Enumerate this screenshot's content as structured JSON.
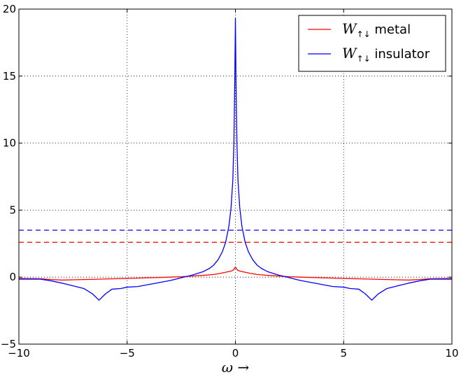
{
  "chart_data": {
    "type": "line",
    "xlabel": "ω →",
    "ylabel": "",
    "xlim": [
      -10,
      10
    ],
    "ylim": [
      -5,
      20
    ],
    "xticks": [
      "−10",
      "−5",
      "0",
      "5",
      "10"
    ],
    "yticks": [
      "−5",
      "0",
      "5",
      "10",
      "15",
      "20"
    ],
    "grid": true,
    "legend_position": "top-right",
    "series": [
      {
        "name": "W↑↓ metal",
        "name_symbol": "W",
        "name_subscript": "↑↓",
        "name_text": "metal",
        "color": "#ff0000",
        "style": "solid",
        "x": [
          -10,
          -9,
          -8.5,
          -8,
          -7.5,
          -7,
          -6,
          -5,
          -4,
          -3,
          -2.5,
          -2,
          -1.5,
          -1,
          -0.7,
          -0.4,
          -0.2,
          -0.1,
          0,
          0.1,
          0.2,
          0.4,
          0.7,
          1,
          1.5,
          2,
          2.5,
          3,
          4,
          5,
          6,
          7,
          7.5,
          8,
          8.5,
          9,
          10
        ],
        "y": [
          -0.1,
          -0.12,
          -0.18,
          -0.22,
          -0.2,
          -0.18,
          -0.14,
          -0.1,
          -0.05,
          0,
          0.03,
          0.08,
          0.13,
          0.2,
          0.28,
          0.38,
          0.45,
          0.52,
          0.75,
          0.52,
          0.45,
          0.38,
          0.28,
          0.2,
          0.13,
          0.08,
          0.03,
          0,
          -0.05,
          -0.1,
          -0.14,
          -0.18,
          -0.2,
          -0.22,
          -0.18,
          -0.12,
          -0.1
        ]
      },
      {
        "name": "W↑↓ insulator",
        "name_symbol": "W",
        "name_subscript": "↑↓",
        "name_text": "insulator",
        "color": "#0000ff",
        "style": "solid",
        "x": [
          -10,
          -9,
          -8.5,
          -8,
          -7.5,
          -7,
          -6.6,
          -6.3,
          -6.0,
          -5.7,
          -5.3,
          -5,
          -4.5,
          -4,
          -3.5,
          -3,
          -2.5,
          -2,
          -1.5,
          -1.2,
          -1,
          -0.8,
          -0.6,
          -0.45,
          -0.3,
          -0.2,
          -0.12,
          -0.07,
          -0.03,
          0,
          0.03,
          0.07,
          0.12,
          0.2,
          0.3,
          0.45,
          0.6,
          0.8,
          1,
          1.2,
          1.5,
          2,
          2.5,
          3,
          3.5,
          4,
          4.5,
          5,
          5.3,
          5.7,
          6.0,
          6.3,
          6.6,
          7,
          7.5,
          8,
          8.5,
          9,
          10
        ],
        "y": [
          -0.15,
          -0.15,
          -0.28,
          -0.45,
          -0.65,
          -0.85,
          -1.25,
          -1.72,
          -1.25,
          -0.9,
          -0.85,
          -0.75,
          -0.7,
          -0.55,
          -0.4,
          -0.25,
          -0.05,
          0.15,
          0.4,
          0.65,
          0.9,
          1.3,
          1.9,
          2.6,
          3.8,
          5.2,
          7.2,
          10,
          14.5,
          19.3,
          14.5,
          10,
          7.2,
          5.2,
          3.8,
          2.6,
          1.9,
          1.3,
          0.9,
          0.65,
          0.4,
          0.15,
          -0.05,
          -0.25,
          -0.4,
          -0.55,
          -0.7,
          -0.75,
          -0.85,
          -0.9,
          -1.25,
          -1.72,
          -1.25,
          -0.85,
          -0.65,
          -0.45,
          -0.28,
          -0.15,
          -0.15
        ]
      },
      {
        "color": "#ff0000",
        "style": "dashed",
        "x": [
          -10,
          10
        ],
        "y": [
          2.6,
          2.6
        ]
      },
      {
        "color": "#0000ff",
        "style": "dashed",
        "x": [
          -10,
          10
        ],
        "y": [
          3.5,
          3.5
        ]
      }
    ]
  }
}
